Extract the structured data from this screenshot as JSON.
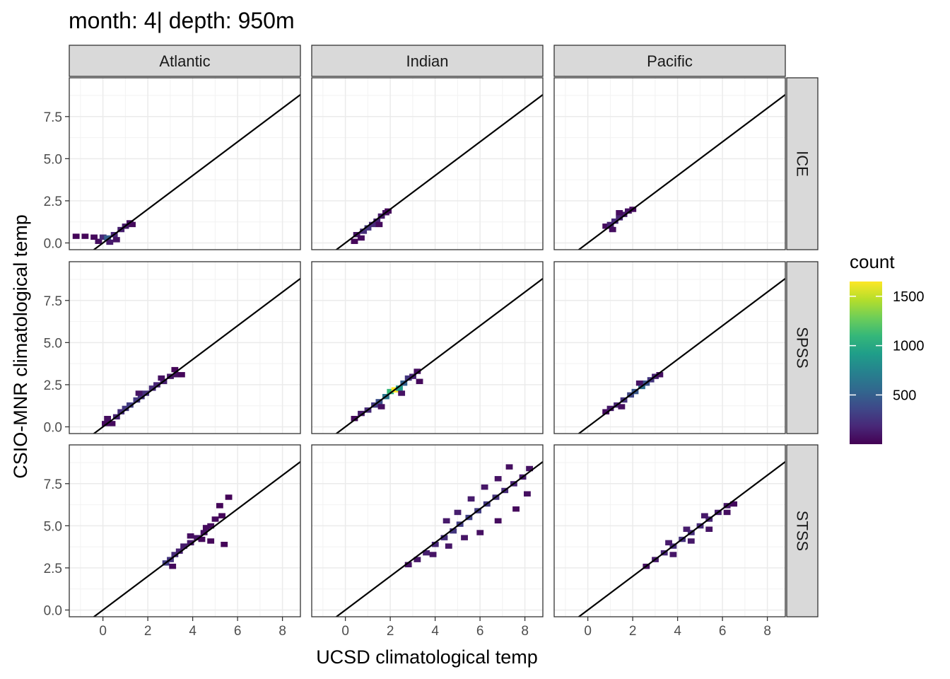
{
  "title": "month: 4| depth: 950m",
  "chart_data": {
    "type": "heatmap",
    "subtype": "2d-bin-count facet grid with identity reference line",
    "xlabel": "UCSD climatological temp",
    "ylabel": "CSIO-MNR climatological temp",
    "xlim": [
      -1.5,
      8.8
    ],
    "ylim": [
      -0.4,
      9.8
    ],
    "x_ticks": [
      0,
      2,
      4,
      6,
      8
    ],
    "x_tick_labels": [
      "0",
      "2",
      "4",
      "6",
      "8"
    ],
    "y_ticks": [
      0,
      2.5,
      5,
      7.5
    ],
    "y_tick_labels": [
      "0.0",
      "2.5",
      "5.0",
      "7.5"
    ],
    "grid": true,
    "reference_line": "y = x",
    "columns": [
      "Atlantic",
      "Indian",
      "Pacific"
    ],
    "rows": [
      "ICE",
      "SPSS",
      "STSS"
    ],
    "legend": {
      "title": "count",
      "position": "right",
      "colormap": "viridis",
      "range": [
        1,
        1650
      ],
      "breaks": [
        500,
        1000,
        1500
      ],
      "break_labels": [
        "500",
        "1000",
        "1500"
      ]
    },
    "panels": [
      {
        "column": "Atlantic",
        "row": "ICE",
        "bins": [
          [
            -1.2,
            0.4,
            20
          ],
          [
            -0.8,
            0.4,
            25
          ],
          [
            -0.4,
            0.35,
            40
          ],
          [
            -0.2,
            0.1,
            60
          ],
          [
            0,
            0.35,
            200
          ],
          [
            0.2,
            0.3,
            500
          ],
          [
            0.3,
            0.05,
            120
          ],
          [
            0.5,
            0.5,
            180
          ],
          [
            0.6,
            0.2,
            90
          ],
          [
            0.8,
            0.8,
            140
          ],
          [
            1,
            1,
            110
          ],
          [
            1.2,
            1.2,
            60
          ],
          [
            1.3,
            1.1,
            40
          ]
        ]
      },
      {
        "column": "Indian",
        "row": "ICE",
        "bins": [
          [
            0.4,
            0.1,
            30
          ],
          [
            0.5,
            0.5,
            90
          ],
          [
            0.8,
            0.7,
            220
          ],
          [
            1,
            0.9,
            260
          ],
          [
            1.2,
            1.1,
            200
          ],
          [
            1.4,
            1.3,
            160
          ],
          [
            1.6,
            1.6,
            120
          ],
          [
            1.8,
            1.8,
            70
          ],
          [
            1.9,
            1.9,
            35
          ],
          [
            0.7,
            0.3,
            50
          ],
          [
            1.5,
            1.1,
            45
          ]
        ]
      },
      {
        "column": "Pacific",
        "row": "ICE",
        "bins": [
          [
            0.8,
            1,
            50
          ],
          [
            1,
            1.1,
            150
          ],
          [
            1.2,
            1.3,
            200
          ],
          [
            1.4,
            1.5,
            170
          ],
          [
            1.6,
            1.7,
            120
          ],
          [
            1.8,
            1.9,
            80
          ],
          [
            2,
            2,
            40
          ],
          [
            1.1,
            0.8,
            60
          ],
          [
            1.4,
            1.8,
            55
          ]
        ]
      },
      {
        "column": "Atlantic",
        "row": "SPSS",
        "bins": [
          [
            0.1,
            0.2,
            40
          ],
          [
            0.2,
            0.5,
            60
          ],
          [
            0.6,
            0.6,
            150
          ],
          [
            0.8,
            0.9,
            220
          ],
          [
            1,
            1.1,
            260
          ],
          [
            1.2,
            1.3,
            300
          ],
          [
            1.5,
            1.6,
            280
          ],
          [
            1.7,
            1.8,
            250
          ],
          [
            1.9,
            2,
            230
          ],
          [
            2.2,
            2.3,
            200
          ],
          [
            2.4,
            2.5,
            170
          ],
          [
            2.7,
            2.7,
            140
          ],
          [
            3,
            3,
            100
          ],
          [
            3.3,
            3.1,
            60
          ],
          [
            3.5,
            3.1,
            30
          ],
          [
            3.2,
            3.4,
            25
          ],
          [
            0.4,
            0.2,
            45
          ],
          [
            1.6,
            2,
            90
          ],
          [
            2.6,
            2.9,
            70
          ]
        ]
      },
      {
        "column": "Indian",
        "row": "SPSS",
        "bins": [
          [
            0.4,
            0.5,
            40
          ],
          [
            0.7,
            0.8,
            110
          ],
          [
            1,
            1,
            200
          ],
          [
            1.3,
            1.3,
            280
          ],
          [
            1.5,
            1.5,
            400
          ],
          [
            1.8,
            1.8,
            650
          ],
          [
            2,
            2.1,
            1100
          ],
          [
            2.2,
            2.2,
            1650
          ],
          [
            2.4,
            2.3,
            900
          ],
          [
            2.6,
            2.6,
            500
          ],
          [
            2.8,
            2.9,
            260
          ],
          [
            3,
            3,
            150
          ],
          [
            3.2,
            3.3,
            60
          ],
          [
            3.3,
            2.7,
            40
          ],
          [
            1.6,
            1.2,
            60
          ],
          [
            2.5,
            2,
            80
          ]
        ]
      },
      {
        "column": "Pacific",
        "row": "SPSS",
        "bins": [
          [
            0.8,
            0.9,
            50
          ],
          [
            1,
            1.1,
            110
          ],
          [
            1.3,
            1.3,
            170
          ],
          [
            1.6,
            1.6,
            240
          ],
          [
            1.9,
            1.9,
            350
          ],
          [
            2.1,
            2.1,
            450
          ],
          [
            2.4,
            2.4,
            600
          ],
          [
            2.6,
            2.6,
            420
          ],
          [
            2.8,
            2.8,
            260
          ],
          [
            3,
            3,
            150
          ],
          [
            3.2,
            3.1,
            70
          ],
          [
            1.5,
            1.2,
            60
          ],
          [
            2.3,
            2.6,
            90
          ]
        ]
      },
      {
        "column": "Atlantic",
        "row": "STSS",
        "bins": [
          [
            2.8,
            2.8,
            300
          ],
          [
            3,
            3,
            250
          ],
          [
            3.2,
            3.3,
            200
          ],
          [
            3.4,
            3.5,
            150
          ],
          [
            3.6,
            3.8,
            130
          ],
          [
            3.9,
            4,
            110
          ],
          [
            4.2,
            4.3,
            90
          ],
          [
            4.5,
            4.6,
            70
          ],
          [
            4.8,
            5,
            50
          ],
          [
            5,
            5.4,
            40
          ],
          [
            4.6,
            4.9,
            45
          ],
          [
            4.4,
            4.2,
            40
          ],
          [
            4.8,
            4.1,
            30
          ],
          [
            5.4,
            3.9,
            25
          ],
          [
            5.2,
            6.2,
            20
          ],
          [
            5.6,
            6.7,
            15
          ],
          [
            5.3,
            5.6,
            25
          ],
          [
            3.9,
            4.4,
            60
          ],
          [
            3.1,
            2.6,
            40
          ]
        ]
      },
      {
        "column": "Indian",
        "row": "STSS",
        "bins": [
          [
            2.8,
            2.7,
            80
          ],
          [
            3.2,
            3,
            100
          ],
          [
            3.6,
            3.4,
            140
          ],
          [
            4,
            3.9,
            180
          ],
          [
            4.4,
            4.3,
            220
          ],
          [
            4.8,
            4.7,
            260
          ],
          [
            5.1,
            5.1,
            300
          ],
          [
            5.5,
            5.5,
            320
          ],
          [
            5.9,
            5.9,
            300
          ],
          [
            6.3,
            6.3,
            270
          ],
          [
            6.7,
            6.7,
            240
          ],
          [
            7.1,
            7.1,
            200
          ],
          [
            7.5,
            7.5,
            160
          ],
          [
            7.9,
            7.9,
            120
          ],
          [
            8.2,
            8.4,
            80
          ],
          [
            4.5,
            5.3,
            120
          ],
          [
            5,
            5.8,
            140
          ],
          [
            5.6,
            6.6,
            130
          ],
          [
            6.2,
            7.3,
            100
          ],
          [
            6.8,
            7.8,
            80
          ],
          [
            7.3,
            8.5,
            60
          ],
          [
            3.9,
            3.3,
            90
          ],
          [
            4.6,
            3.8,
            100
          ],
          [
            5.3,
            4.3,
            90
          ],
          [
            6,
            4.6,
            70
          ],
          [
            6.8,
            5.3,
            50
          ],
          [
            7.6,
            6,
            40
          ],
          [
            8.1,
            6.9,
            60
          ]
        ]
      },
      {
        "column": "Pacific",
        "row": "STSS",
        "bins": [
          [
            2.6,
            2.6,
            60
          ],
          [
            3,
            3,
            120
          ],
          [
            3.4,
            3.4,
            180
          ],
          [
            3.8,
            3.8,
            220
          ],
          [
            4.2,
            4.2,
            240
          ],
          [
            4.6,
            4.6,
            230
          ],
          [
            5,
            5,
            200
          ],
          [
            5.4,
            5.4,
            170
          ],
          [
            5.8,
            5.8,
            130
          ],
          [
            6.2,
            6.2,
            90
          ],
          [
            6.5,
            6.3,
            50
          ],
          [
            3.6,
            4,
            120
          ],
          [
            4.4,
            4.8,
            130
          ],
          [
            5.2,
            5.6,
            110
          ],
          [
            3.8,
            3.3,
            100
          ],
          [
            4.6,
            4.1,
            110
          ],
          [
            5.4,
            4.8,
            90
          ],
          [
            6.2,
            5.8,
            60
          ]
        ]
      }
    ]
  }
}
